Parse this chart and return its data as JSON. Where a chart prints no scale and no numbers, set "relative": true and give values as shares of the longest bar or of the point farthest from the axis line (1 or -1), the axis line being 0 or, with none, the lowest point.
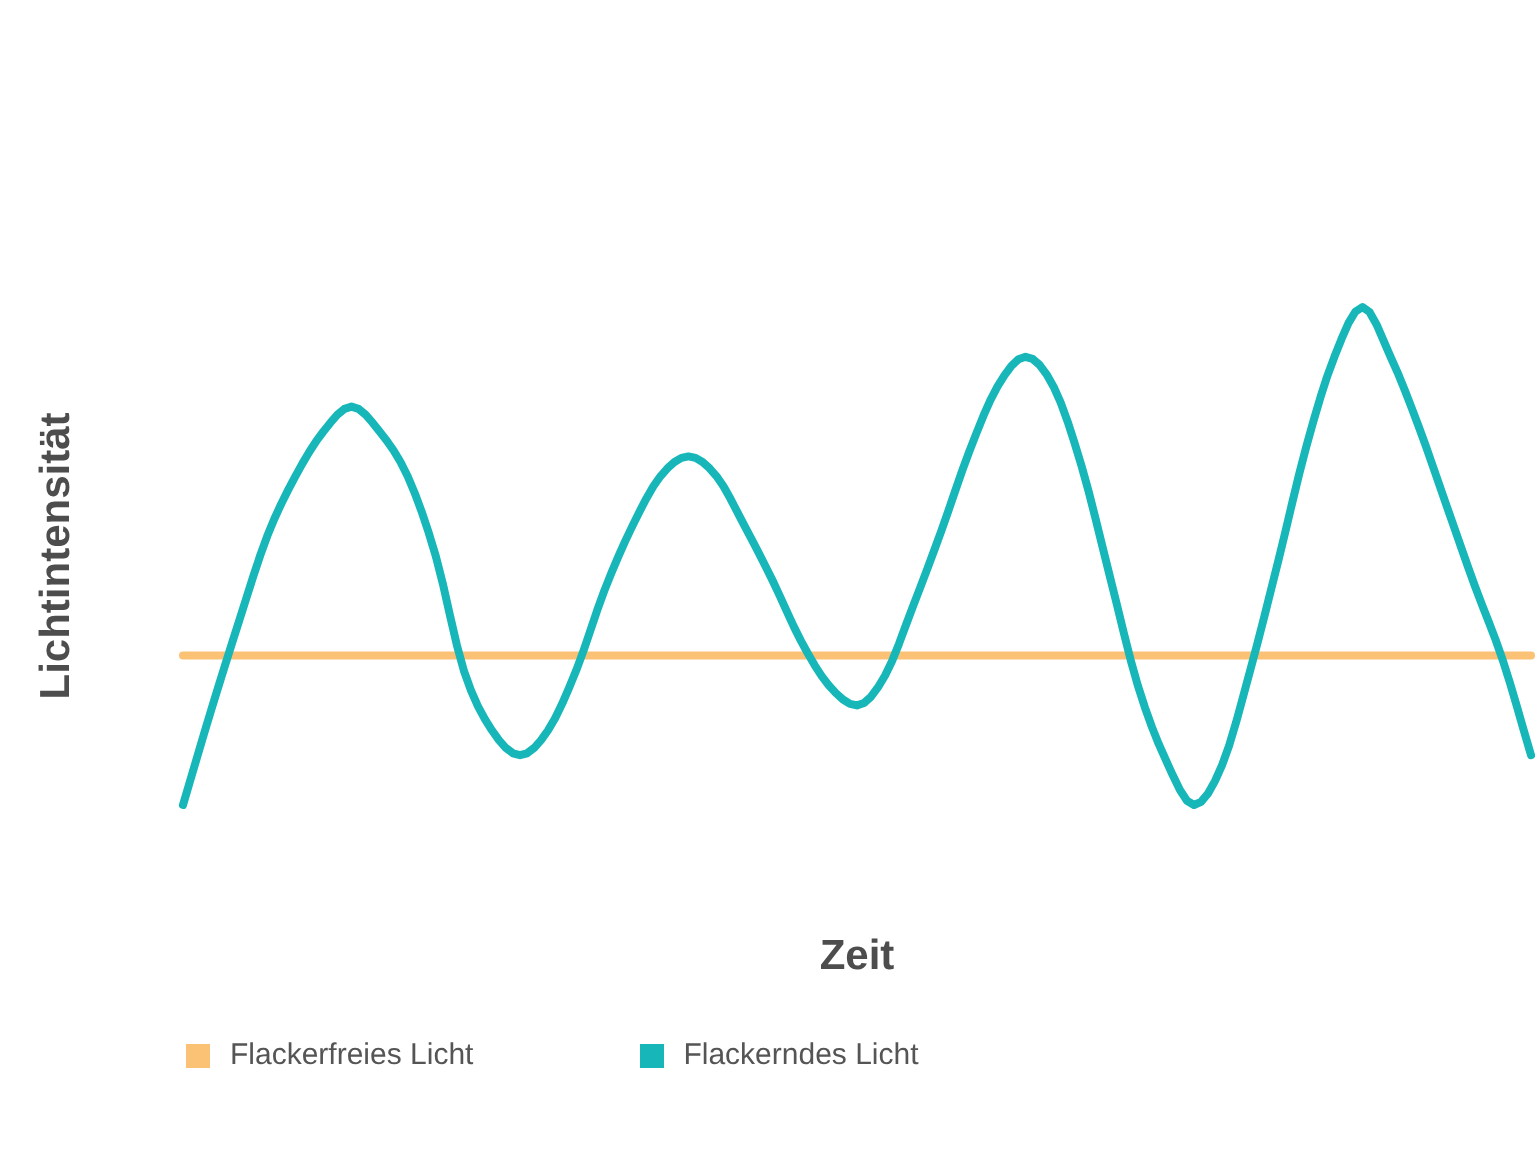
{
  "chart_data": {
    "type": "line",
    "xlabel": "Zeit",
    "ylabel": "Lichtintensität",
    "categories": [
      null,
      null,
      null,
      null,
      null,
      null,
      null,
      null,
      null,
      null,
      null,
      null,
      null,
      null,
      null,
      null,
      null,
      null,
      null,
      null,
      null,
      null,
      null,
      null,
      null,
      null,
      null,
      null,
      null,
      null,
      null,
      null,
      null,
      null,
      null,
      null,
      null,
      null,
      null,
      null,
      null,
      null,
      null,
      null,
      null,
      null,
      null,
      null,
      null
    ],
    "relative": true,
    "series": [
      {
        "name": "Flackerfreies Licht",
        "color": "#fbc275",
        "values": [
          0.3,
          0.3,
          0.3,
          0.3,
          0.3,
          0.3,
          0.3,
          0.3,
          0.3,
          0.3,
          0.3,
          0.3,
          0.3,
          0.3,
          0.3,
          0.3,
          0.3,
          0.3,
          0.3,
          0.3,
          0.3,
          0.3,
          0.3,
          0.3,
          0.3,
          0.3,
          0.3,
          0.3,
          0.3,
          0.3,
          0.3,
          0.3,
          0.3,
          0.3,
          0.3,
          0.3,
          0.3,
          0.3,
          0.3,
          0.3,
          0.3,
          0.3,
          0.3,
          0.3,
          0.3,
          0.3,
          0.3,
          0.3,
          0.3
        ]
      },
      {
        "name": "Flackerndes Licht",
        "color": "#17b7b9",
        "values": [
          0,
          0.19,
          0.37,
          0.54,
          0.66,
          0.75,
          0.8,
          0.75,
          0.66,
          0.5,
          0.27,
          0.15,
          0.1,
          0.15,
          0.27,
          0.43,
          0.56,
          0.66,
          0.7,
          0.66,
          0.56,
          0.45,
          0.33,
          0.24,
          0.2,
          0.26,
          0.4,
          0.55,
          0.71,
          0.84,
          0.9,
          0.84,
          0.68,
          0.46,
          0.24,
          0.09,
          0,
          0.08,
          0.27,
          0.49,
          0.72,
          0.9,
          1,
          0.9,
          0.76,
          0.6,
          0.44,
          0.29,
          0.1
        ]
      }
    ],
    "legend": "bottom left"
  }
}
